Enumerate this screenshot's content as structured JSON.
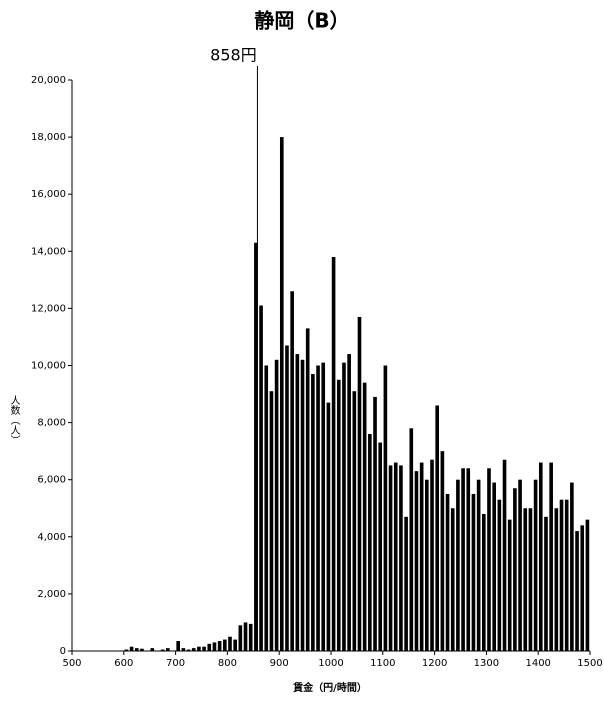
{
  "chart_data": {
    "type": "histogram",
    "title": "静岡（B）",
    "x_label": "賃金（円/時間）",
    "y_label": "人数（人）",
    "bins": [
      500,
      510,
      520,
      530,
      540,
      550,
      560,
      570,
      580,
      590,
      600,
      610,
      620,
      630,
      640,
      650,
      660,
      670,
      680,
      690,
      700,
      710,
      720,
      730,
      740,
      750,
      760,
      770,
      780,
      790,
      800,
      810,
      820,
      830,
      840,
      850,
      860,
      870,
      880,
      890,
      900,
      910,
      920,
      930,
      940,
      950,
      960,
      970,
      980,
      990,
      1000,
      1010,
      1020,
      1030,
      1040,
      1050,
      1060,
      1070,
      1080,
      1090,
      1100,
      1110,
      1120,
      1130,
      1140,
      1150,
      1160,
      1170,
      1180,
      1190,
      1200,
      1210,
      1220,
      1230,
      1240,
      1250,
      1260,
      1270,
      1280,
      1290,
      1300,
      1310,
      1320,
      1330,
      1340,
      1350,
      1360,
      1370,
      1380,
      1390,
      1400,
      1410,
      1420,
      1430,
      1440,
      1450,
      1460,
      1470,
      1480,
      1490,
      1500
    ],
    "counts": [
      0,
      0,
      0,
      0,
      0,
      0,
      0,
      0,
      0,
      0,
      50,
      150,
      100,
      80,
      0,
      100,
      0,
      50,
      100,
      0,
      350,
      100,
      50,
      100,
      150,
      150,
      250,
      300,
      350,
      400,
      500,
      400,
      900,
      1000,
      950,
      14300,
      12100,
      10000,
      9100,
      10200,
      18000,
      10700,
      12600,
      10400,
      10200,
      11300,
      9700,
      10000,
      10100,
      8700,
      13800,
      9500,
      10100,
      10400,
      9100,
      11700,
      9400,
      7600,
      8900,
      7300,
      10000,
      6500,
      6600,
      6500,
      4700,
      7800,
      6300,
      6600,
      6000,
      6700,
      8600,
      7000,
      5500,
      5000,
      6000,
      6400,
      6400,
      5500,
      6000,
      4800,
      6400,
      5900,
      5300,
      6700,
      4600,
      5700,
      6000,
      5000,
      5000,
      6000,
      6600,
      4700,
      6600,
      5000,
      5300,
      5300,
      5900,
      4200,
      4400,
      4600
    ],
    "color": "#000000",
    "xlim": [
      500,
      1500
    ],
    "xticks": [
      500,
      600,
      700,
      800,
      900,
      1000,
      1100,
      1200,
      1300,
      1400,
      1500
    ],
    "ylim": [
      0,
      20000
    ],
    "yticks": [
      0,
      {
        "value": 2000,
        "label": "2,000"
      },
      {
        "value": 4000,
        "label": "4,000"
      },
      {
        "value": 6000,
        "label": "6,000"
      },
      {
        "value": 8000,
        "label": "8,000"
      },
      {
        "value": 10000,
        "label": "10,000"
      },
      {
        "value": 12000,
        "label": "12,000"
      },
      {
        "value": 14000,
        "label": "14,000"
      },
      {
        "value": 16000,
        "label": "16,000"
      },
      {
        "value": 18000,
        "label": "18,000"
      },
      {
        "value": 20000,
        "label": "20,000"
      }
    ],
    "annotation": {
      "text": "858円",
      "x": 858
    }
  }
}
